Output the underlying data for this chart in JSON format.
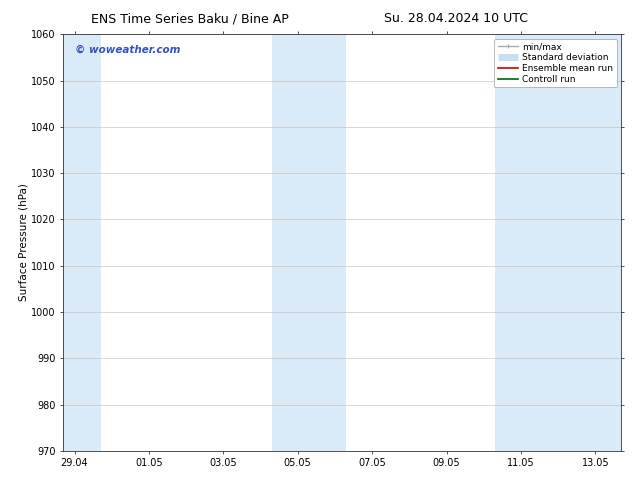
{
  "title_left": "ENS Time Series Baku / Bine AP",
  "title_right": "Su. 28.04.2024 10 UTC",
  "ylabel": "Surface Pressure (hPa)",
  "ylim": [
    970,
    1060
  ],
  "yticks": [
    970,
    980,
    990,
    1000,
    1010,
    1020,
    1030,
    1040,
    1050,
    1060
  ],
  "x_tick_labels": [
    "29.04",
    "01.05",
    "03.05",
    "05.05",
    "07.05",
    "09.05",
    "11.05",
    "13.05"
  ],
  "x_tick_positions": [
    0,
    2,
    4,
    6,
    8,
    10,
    12,
    14
  ],
  "xlim": [
    -0.3,
    14.7
  ],
  "bg_color": "#ffffff",
  "plot_bg_color": "#ffffff",
  "shaded_bands": [
    {
      "x_start": -0.3,
      "x_end": 0.7,
      "color": "#daeaf7"
    },
    {
      "x_start": 5.3,
      "x_end": 7.3,
      "color": "#daeaf7"
    },
    {
      "x_start": 11.3,
      "x_end": 14.7,
      "color": "#daeaf7"
    }
  ],
  "watermark_text": "© woweather.com",
  "watermark_color": "#3355bb",
  "legend_items": [
    {
      "label": "min/max",
      "color": "#aaaaaa",
      "lw": 1.0,
      "ls": "-",
      "type": "minmax"
    },
    {
      "label": "Standard deviation",
      "color": "#c8dff0",
      "lw": 5,
      "ls": "-",
      "type": "band"
    },
    {
      "label": "Ensemble mean run",
      "color": "#cc0000",
      "lw": 1.2,
      "ls": "-",
      "type": "line"
    },
    {
      "label": "Controll run",
      "color": "#006600",
      "lw": 1.2,
      "ls": "-",
      "type": "line"
    }
  ],
  "grid_color": "#bbbbbb",
  "grid_lw": 0.4,
  "title_fontsize": 9,
  "tick_fontsize": 7,
  "ylabel_fontsize": 7.5,
  "watermark_fontsize": 7.5,
  "legend_fontsize": 6.5
}
